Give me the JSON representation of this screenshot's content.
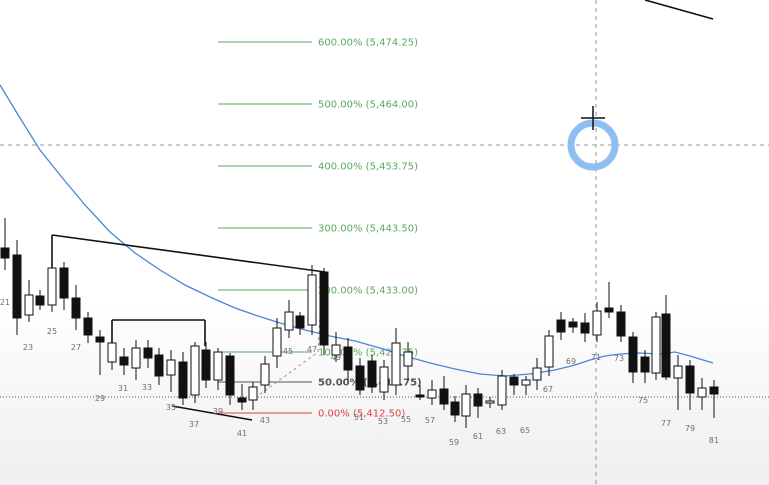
{
  "chart_data": {
    "type": "candlestick",
    "fib_levels": [
      {
        "pct": "600.00%",
        "price": "5,474.25",
        "color": "#5aa95f"
      },
      {
        "pct": "500.00%",
        "price": "5,464.00",
        "color": "#5aa95f"
      },
      {
        "pct": "400.00%",
        "price": "5,453.75",
        "color": "#5aa95f"
      },
      {
        "pct": "300.00%",
        "price": "5,443.50",
        "color": "#5aa95f"
      },
      {
        "pct": "200.00%",
        "price": "5,433.00",
        "color": "#5aa95f"
      },
      {
        "pct": "100.00%",
        "price": "5,422.75",
        "color": "#5aa95f"
      },
      {
        "pct": "50.00%",
        "price": "5,417.75",
        "color": "#555555"
      },
      {
        "pct": "0.00%",
        "price": "5,412.50",
        "color": "#e0443a"
      }
    ],
    "bar_numbers": [
      "21",
      "23",
      "25",
      "27",
      "29",
      "31",
      "33",
      "35",
      "37",
      "39",
      "41",
      "43",
      "45",
      "47",
      "49",
      "51",
      "53",
      "55",
      "57",
      "59",
      "61",
      "63",
      "65",
      "67",
      "69",
      "71",
      "73",
      "75",
      "77",
      "79",
      "81"
    ],
    "colors": {
      "candle": "#111111",
      "moving_average": "#4a86d8",
      "crosshair": "#999999",
      "cursor_ring": "#8fbef0"
    }
  }
}
